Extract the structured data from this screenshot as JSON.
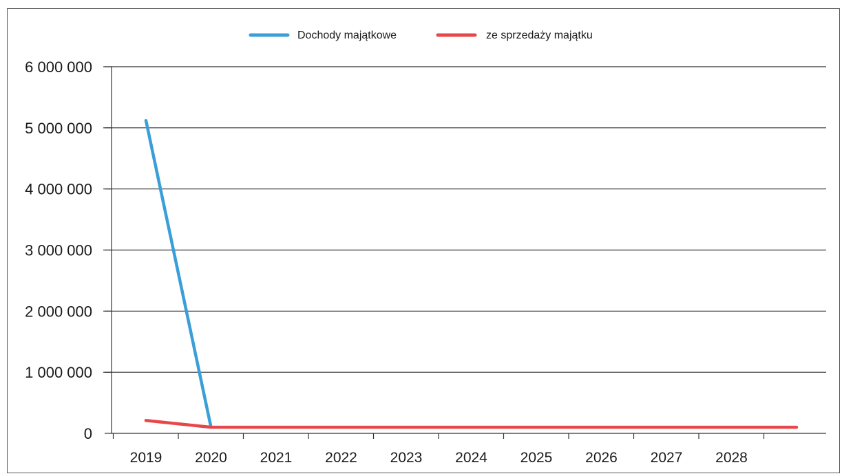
{
  "chart_data": {
    "type": "line",
    "title": "",
    "xlabel": "",
    "ylabel": "",
    "categories": [
      "2019",
      "2020",
      "2021",
      "2022",
      "2023",
      "2024",
      "2025",
      "2026",
      "2027",
      "2028"
    ],
    "series": [
      {
        "name": "Dochody majątkowe",
        "color": "#3a9fd8",
        "values": [
          5120000,
          100000,
          null,
          null,
          null,
          null,
          null,
          null,
          null,
          null
        ]
      },
      {
        "name": "ze sprzedaży majątku",
        "color": "#e8474a",
        "values": [
          210000,
          100000,
          100000,
          100000,
          100000,
          100000,
          100000,
          100000,
          100000,
          100000
        ]
      }
    ],
    "ylim": [
      0,
      6000000
    ],
    "yticks": [
      {
        "value": 0,
        "label": "0"
      },
      {
        "value": 1000000,
        "label": "1 000 000"
      },
      {
        "value": 2000000,
        "label": "2 000 000"
      },
      {
        "value": 3000000,
        "label": "3 000 000"
      },
      {
        "value": 4000000,
        "label": "4 000 000"
      },
      {
        "value": 5000000,
        "label": "5 000 000"
      },
      {
        "value": 6000000,
        "label": "6 000 000"
      }
    ],
    "grid": true,
    "legend_position": "top-center"
  }
}
